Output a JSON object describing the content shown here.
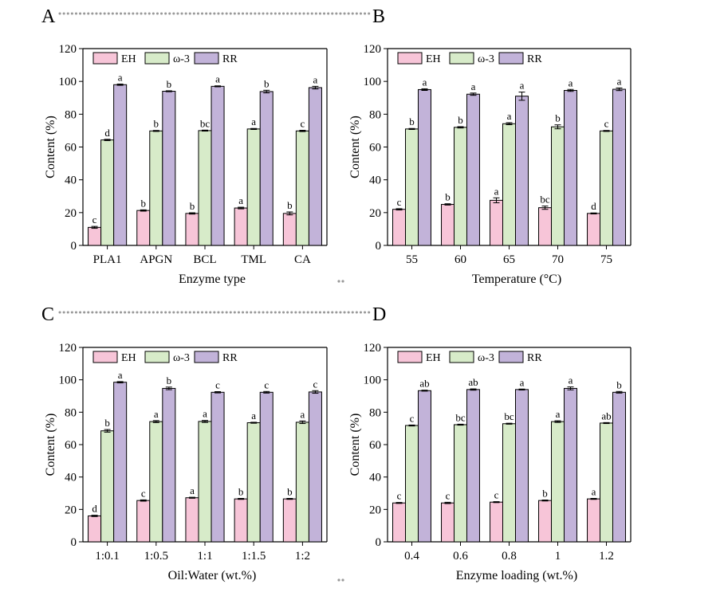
{
  "figure": {
    "colors": {
      "EH": "#f7c5d8",
      "omega3": "#d7ebc9",
      "RR": "#c2b3d9",
      "stroke": "#000000",
      "separator": "#999999"
    }
  },
  "chart_data": [
    {
      "panel": "A",
      "type": "bar",
      "categories": [
        "PLA1",
        "APGN",
        "BCL",
        "TML",
        "CA"
      ],
      "xlabel": "Enzyme type",
      "ylabel": "Content (%)",
      "ylim": [
        0,
        120
      ],
      "yticks": [
        "0",
        "20",
        "40",
        "60",
        "80",
        "100",
        "120"
      ],
      "legend_position": "top-left",
      "series": [
        {
          "name": "EH",
          "values": [
            11.0,
            21.3,
            19.5,
            22.8,
            19.5
          ],
          "errors": [
            0.6,
            0.4,
            0.4,
            0.5,
            0.9
          ],
          "letters": [
            "c",
            "b",
            "b",
            "a",
            "b"
          ]
        },
        {
          "name": "ω-3",
          "values": [
            64.3,
            69.8,
            70.0,
            71.0,
            69.8
          ],
          "errors": [
            0.4,
            0.3,
            0.3,
            0.3,
            0.4
          ],
          "letters": [
            "d",
            "b",
            "bc",
            "a",
            "c"
          ]
        },
        {
          "name": "RR",
          "values": [
            98.0,
            94.0,
            97.0,
            93.8,
            96.2
          ],
          "errors": [
            0.4,
            0.3,
            0.3,
            0.8,
            0.8
          ],
          "letters": [
            "a",
            "b",
            "a",
            "b",
            "a"
          ]
        }
      ]
    },
    {
      "panel": "B",
      "type": "bar",
      "categories": [
        "55",
        "60",
        "65",
        "70",
        "75"
      ],
      "xlabel": "Temperature (°C)",
      "ylabel": "Content (%)",
      "ylim": [
        0,
        120
      ],
      "yticks": [
        "0",
        "20",
        "40",
        "60",
        "80",
        "100",
        "120"
      ],
      "legend_position": "top-left",
      "series": [
        {
          "name": "EH",
          "values": [
            22.0,
            25.0,
            27.5,
            23.0,
            19.5
          ],
          "errors": [
            0.4,
            0.4,
            1.5,
            1.0,
            0.3
          ],
          "letters": [
            "c",
            "b",
            "a",
            "bc",
            "d"
          ]
        },
        {
          "name": "ω-3",
          "values": [
            71.0,
            72.0,
            74.2,
            72.3,
            69.8
          ],
          "errors": [
            0.3,
            0.4,
            0.6,
            1.2,
            0.3
          ],
          "letters": [
            "b",
            "b",
            "a",
            "b",
            "c"
          ]
        },
        {
          "name": "RR",
          "values": [
            95.0,
            92.2,
            91.0,
            94.5,
            95.2
          ],
          "errors": [
            0.5,
            0.7,
            2.5,
            0.6,
            0.8
          ],
          "letters": [
            "a",
            "a",
            "a",
            "a",
            "a"
          ]
        }
      ]
    },
    {
      "panel": "C",
      "type": "bar",
      "categories": [
        "1:0.1",
        "1:0.5",
        "1:1",
        "1:1.5",
        "1:2"
      ],
      "xlabel": "Oil:Water (wt.%)",
      "ylabel": "Content (%)",
      "ylim": [
        0,
        120
      ],
      "yticks": [
        "0",
        "20",
        "40",
        "60",
        "80",
        "100",
        "120"
      ],
      "legend_position": "top-left",
      "series": [
        {
          "name": "EH",
          "values": [
            16.0,
            25.5,
            27.2,
            26.5,
            26.5
          ],
          "errors": [
            0.4,
            0.4,
            0.3,
            0.3,
            0.3
          ],
          "letters": [
            "d",
            "c",
            "a",
            "b",
            "b"
          ]
        },
        {
          "name": "ω-3",
          "values": [
            68.5,
            74.2,
            74.3,
            73.5,
            73.8
          ],
          "errors": [
            0.8,
            0.6,
            0.6,
            0.3,
            0.8
          ],
          "letters": [
            "b",
            "a",
            "a",
            "a",
            "a"
          ]
        },
        {
          "name": "RR",
          "values": [
            98.5,
            94.7,
            92.3,
            92.3,
            92.5
          ],
          "errors": [
            0.4,
            0.8,
            0.4,
            0.5,
            0.8
          ],
          "letters": [
            "a",
            "b",
            "c",
            "c",
            "c"
          ]
        }
      ]
    },
    {
      "panel": "D",
      "type": "bar",
      "categories": [
        "0.4",
        "0.6",
        "0.8",
        "1",
        "1.2"
      ],
      "xlabel": "Enzyme loading (wt.%)",
      "ylabel": "Content (%)",
      "ylim": [
        0,
        120
      ],
      "yticks": [
        "0",
        "20",
        "40",
        "60",
        "80",
        "100",
        "120"
      ],
      "legend_position": "top-left",
      "series": [
        {
          "name": "EH",
          "values": [
            24.0,
            24.0,
            24.5,
            25.5,
            26.5
          ],
          "errors": [
            0.3,
            0.4,
            0.3,
            0.3,
            0.3
          ],
          "letters": [
            "c",
            "c",
            "c",
            "b",
            "a"
          ]
        },
        {
          "name": "ω-3",
          "values": [
            71.8,
            72.3,
            72.9,
            74.2,
            73.3
          ],
          "errors": [
            0.3,
            0.3,
            0.3,
            0.5,
            0.3
          ],
          "letters": [
            "c",
            "bc",
            "bc",
            "a",
            "ab"
          ]
        },
        {
          "name": "RR",
          "values": [
            93.3,
            94.0,
            94.0,
            94.7,
            92.3
          ],
          "errors": [
            0.3,
            0.4,
            0.3,
            0.9,
            0.5
          ],
          "letters": [
            "ab",
            "ab",
            "a",
            "a",
            "b"
          ]
        }
      ]
    }
  ]
}
